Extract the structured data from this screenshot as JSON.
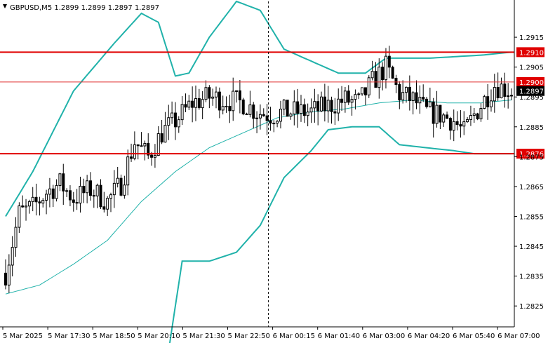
{
  "header": {
    "symbol": "GBPUSD,M5",
    "open": "1.2899",
    "high": "1.2899",
    "low": "1.2897",
    "close": "1.2897"
  },
  "chart_data": {
    "type": "candlestick",
    "symbol": "GBPUSD",
    "timeframe": "M5",
    "ylim": [
      1.2818,
      1.2927
    ],
    "price_axis_ticks": [
      "1.2915",
      "1.2905",
      "1.2895",
      "1.2885",
      "1.2875",
      "1.2865",
      "1.2855",
      "1.2845",
      "1.2835",
      "1.2825"
    ],
    "time_axis_labels": [
      "5 Mar 2025",
      "5 Mar 17:30",
      "5 Mar 18:50",
      "5 Mar 20:10",
      "5 Mar 21:30",
      "5 Mar 22:50",
      "6 Mar 00:15",
      "6 Mar 01:40",
      "6 Mar 03:00",
      "6 Mar 04:20",
      "6 Mar 05:40",
      "6 Mar 07:00"
    ],
    "horizontal_levels": [
      {
        "label": "1.2910",
        "value": 1.291,
        "color": "#e00000"
      },
      {
        "label": "1.2900",
        "value": 1.29,
        "color": "#e03030"
      },
      {
        "label": "1.2876",
        "value": 1.2876,
        "color": "#e00000"
      }
    ],
    "current_price": {
      "label": "1.2897",
      "value": 1.2897
    },
    "session_divider_after_label": "5 Mar 22:50",
    "candle_count": 150,
    "candle_anchors": [
      [
        0,
        1.2836
      ],
      [
        4,
        1.2856
      ],
      [
        8,
        1.2858
      ],
      [
        12,
        1.2863
      ],
      [
        16,
        1.2866
      ],
      [
        20,
        1.2861
      ],
      [
        25,
        1.2864
      ],
      [
        30,
        1.286
      ],
      [
        34,
        1.2866
      ],
      [
        38,
        1.288
      ],
      [
        42,
        1.2875
      ],
      [
        46,
        1.2883
      ],
      [
        50,
        1.2887
      ],
      [
        55,
        1.2893
      ],
      [
        60,
        1.2895
      ],
      [
        65,
        1.2894
      ],
      [
        70,
        1.2893
      ],
      [
        74,
        1.289
      ],
      [
        78,
        1.2889
      ],
      [
        82,
        1.289
      ],
      [
        86,
        1.289
      ],
      [
        90,
        1.289
      ],
      [
        95,
        1.2892
      ],
      [
        100,
        1.2894
      ],
      [
        104,
        1.2893
      ],
      [
        108,
        1.29
      ],
      [
        112,
        1.2905
      ],
      [
        116,
        1.2896
      ],
      [
        120,
        1.2894
      ],
      [
        124,
        1.289
      ],
      [
        128,
        1.2889
      ],
      [
        132,
        1.2887
      ],
      [
        135,
        1.2883
      ],
      [
        138,
        1.2889
      ],
      [
        141,
        1.2894
      ],
      [
        144,
        1.2899
      ],
      [
        149,
        1.2897
      ]
    ],
    "bollinger_upper": [
      [
        0,
        1.2855
      ],
      [
        8,
        1.287
      ],
      [
        20,
        1.2897
      ],
      [
        32,
        1.2913
      ],
      [
        40,
        1.2923
      ],
      [
        45,
        1.292
      ],
      [
        50,
        1.2902
      ],
      [
        54,
        1.2903
      ],
      [
        60,
        1.2915
      ],
      [
        68,
        1.2927
      ],
      [
        75,
        1.2924
      ],
      [
        82,
        1.2911
      ],
      [
        90,
        1.2907
      ],
      [
        98,
        1.2903
      ],
      [
        106,
        1.2903
      ],
      [
        112,
        1.2908
      ],
      [
        125,
        1.2908
      ],
      [
        140,
        1.2909
      ],
      [
        149,
        1.291
      ]
    ],
    "bollinger_middle": [
      [
        0,
        1.2829
      ],
      [
        10,
        1.2832
      ],
      [
        20,
        1.2839
      ],
      [
        30,
        1.2847
      ],
      [
        40,
        1.286
      ],
      [
        50,
        1.287
      ],
      [
        60,
        1.2878
      ],
      [
        70,
        1.2883
      ],
      [
        80,
        1.2888
      ],
      [
        90,
        1.289
      ],
      [
        100,
        1.2891
      ],
      [
        110,
        1.2893
      ],
      [
        120,
        1.2894
      ],
      [
        130,
        1.2893
      ],
      [
        140,
        1.2893
      ],
      [
        149,
        1.2894
      ]
    ],
    "bollinger_lower": [
      [
        48,
        1.281
      ],
      [
        52,
        1.284
      ],
      [
        60,
        1.284
      ],
      [
        68,
        1.2843
      ],
      [
        75,
        1.2852
      ],
      [
        82,
        1.2868
      ],
      [
        90,
        1.2877
      ],
      [
        95,
        1.2884
      ],
      [
        102,
        1.2885
      ],
      [
        110,
        1.2885
      ],
      [
        116,
        1.2879
      ],
      [
        124,
        1.2878
      ],
      [
        132,
        1.2877
      ],
      [
        138,
        1.2876
      ],
      [
        149,
        1.2876
      ]
    ],
    "colors": {
      "candle": "#000000",
      "bands": "#20b2aa",
      "grid_axis": "#000000",
      "level_line": "#e00000",
      "badge_bg": "#e00000",
      "badge_text": "#ffffff",
      "price_badge_bg": "#000000",
      "divider": "#000000"
    }
  }
}
